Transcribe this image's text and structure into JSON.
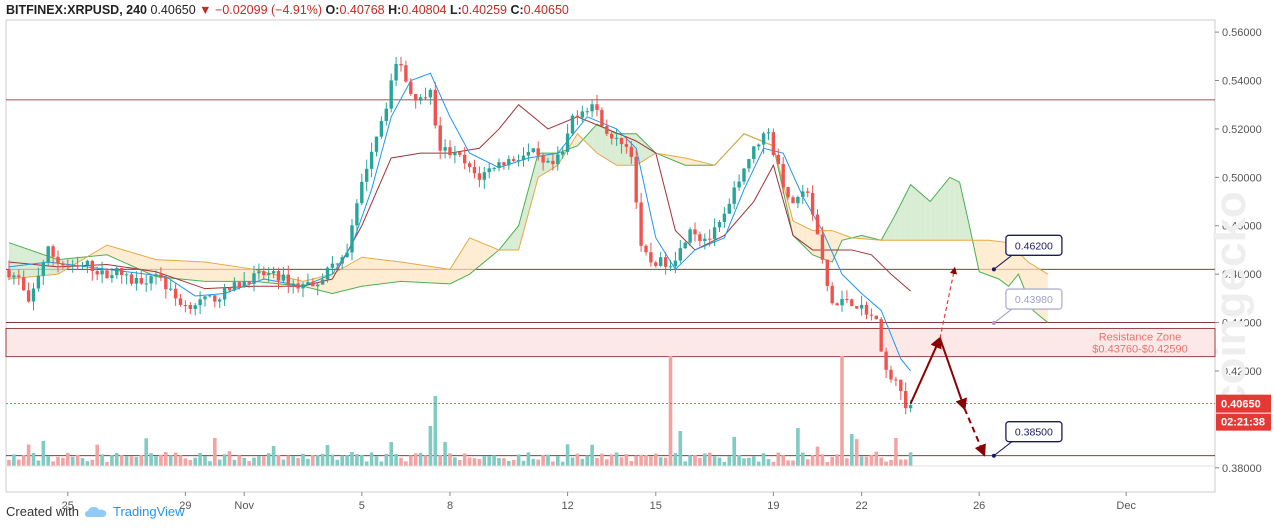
{
  "header": {
    "symbol": "BITFINEX:XRPUSD, 240",
    "last": "0.40650",
    "change": "−0.02099 (−4.91%)",
    "open_label": "O:",
    "open": "0.40768",
    "high_label": "H:",
    "high": "0.40804",
    "low_label": "L:",
    "low": "0.40259",
    "close_label": "C:",
    "close": "0.40650"
  },
  "footer": {
    "created_with": "Created with",
    "brand": "TradingView"
  },
  "colors": {
    "up": "#26a69a",
    "down": "#ef5350",
    "volume_up": "#80cbc4",
    "volume_down": "#f4a3a3",
    "hline": "#7b1c1c",
    "resistance_fill": "#fde8e8",
    "cloud_green": "#c9e6c3",
    "cloud_orange": "#fde5c0",
    "tenkan": "#2196f3",
    "kijun": "#a0333a",
    "span_a": "#4caf50",
    "span_b": "#e8a846",
    "badge_border": "#1a1a60",
    "arrow": "#8b0000",
    "price_tag": "#e53935"
  },
  "chart_data": {
    "type": "candlestick",
    "title": "BITFINEX:XRPUSD, 240",
    "ylim": [
      0.37,
      0.565
    ],
    "y_ticks": [
      "0.56000",
      "0.54000",
      "0.52000",
      "0.50000",
      "0.48000",
      "0.46000",
      "0.44000",
      "0.42000",
      "0.38000"
    ],
    "x_ticks": [
      {
        "label": "25",
        "idx": 12
      },
      {
        "label": "29",
        "idx": 36
      },
      {
        "label": "Nov",
        "idx": 48
      },
      {
        "label": "5",
        "idx": 72
      },
      {
        "label": "8",
        "idx": 90
      },
      {
        "label": "12",
        "idx": 114
      },
      {
        "label": "15",
        "idx": 132
      },
      {
        "label": "19",
        "idx": 156
      },
      {
        "label": "22",
        "idx": 174
      },
      {
        "label": "26",
        "idx": 198
      },
      {
        "label": "Dec",
        "idx": 228
      }
    ],
    "candle_count": 185,
    "anchors": [
      [
        0,
        0.462
      ],
      [
        3,
        0.458
      ],
      [
        5,
        0.447
      ],
      [
        7,
        0.46
      ],
      [
        9,
        0.47
      ],
      [
        11,
        0.465
      ],
      [
        14,
        0.462
      ],
      [
        17,
        0.464
      ],
      [
        20,
        0.46
      ],
      [
        23,
        0.461
      ],
      [
        26,
        0.457
      ],
      [
        29,
        0.458
      ],
      [
        31,
        0.461
      ],
      [
        33,
        0.455
      ],
      [
        35,
        0.45
      ],
      [
        37,
        0.447
      ],
      [
        41,
        0.449
      ],
      [
        44,
        0.451
      ],
      [
        47,
        0.455
      ],
      [
        50,
        0.458
      ],
      [
        53,
        0.46
      ],
      [
        56,
        0.459
      ],
      [
        60,
        0.455
      ],
      [
        64,
        0.457
      ],
      [
        67,
        0.464
      ],
      [
        70,
        0.47
      ],
      [
        72,
        0.488
      ],
      [
        74,
        0.505
      ],
      [
        76,
        0.518
      ],
      [
        78,
        0.53
      ],
      [
        79,
        0.54
      ],
      [
        80,
        0.545
      ],
      [
        81,
        0.548
      ],
      [
        82,
        0.54
      ],
      [
        83,
        0.535
      ],
      [
        85,
        0.532
      ],
      [
        87,
        0.538
      ],
      [
        88,
        0.52
      ],
      [
        89,
        0.512
      ],
      [
        91,
        0.51
      ],
      [
        93,
        0.508
      ],
      [
        95,
        0.503
      ],
      [
        97,
        0.5
      ],
      [
        100,
        0.505
      ],
      [
        103,
        0.507
      ],
      [
        106,
        0.509
      ],
      [
        108,
        0.51
      ],
      [
        110,
        0.505
      ],
      [
        112,
        0.505
      ],
      [
        114,
        0.51
      ],
      [
        116,
        0.525
      ],
      [
        118,
        0.528
      ],
      [
        120,
        0.53
      ],
      [
        122,
        0.523
      ],
      [
        124,
        0.515
      ],
      [
        126,
        0.515
      ],
      [
        128,
        0.51
      ],
      [
        129,
        0.49
      ],
      [
        130,
        0.47
      ],
      [
        132,
        0.465
      ],
      [
        134,
        0.465
      ],
      [
        136,
        0.465
      ],
      [
        138,
        0.47
      ],
      [
        140,
        0.48
      ],
      [
        142,
        0.475
      ],
      [
        144,
        0.475
      ],
      [
        146,
        0.48
      ],
      [
        148,
        0.488
      ],
      [
        150,
        0.5
      ],
      [
        152,
        0.508
      ],
      [
        154,
        0.515
      ],
      [
        156,
        0.52
      ],
      [
        157,
        0.51
      ],
      [
        158,
        0.505
      ],
      [
        160,
        0.49
      ],
      [
        162,
        0.49
      ],
      [
        164,
        0.495
      ],
      [
        165,
        0.485
      ],
      [
        166,
        0.475
      ],
      [
        167,
        0.465
      ],
      [
        168,
        0.455
      ],
      [
        169,
        0.448
      ],
      [
        170,
        0.447
      ],
      [
        172,
        0.45
      ],
      [
        174,
        0.447
      ],
      [
        176,
        0.445
      ],
      [
        178,
        0.44
      ],
      [
        179,
        0.43
      ],
      [
        180,
        0.42
      ],
      [
        181,
        0.415
      ],
      [
        182,
        0.418
      ],
      [
        183,
        0.41
      ],
      [
        184,
        0.4065
      ]
    ],
    "key_levels": [
      {
        "price": 0.532
      },
      {
        "price": 0.462,
        "label": "0.46200"
      },
      {
        "price": 0.44
      },
      {
        "price": 0.4376,
        "label": "Resistance Zone top"
      },
      {
        "price": 0.4259,
        "label": "Resistance Zone bottom"
      },
      {
        "price": 0.385,
        "label": "0.38500"
      }
    ],
    "resistance_zone": {
      "label": "Resistance Zone",
      "range": "$0.43760-$0.42590",
      "top": 0.4376,
      "bottom": 0.4259
    },
    "badges": [
      {
        "label": "0.46200",
        "price": 0.462,
        "idx": 201
      },
      {
        "label": "0.43980",
        "price": 0.4398,
        "idx": 201
      },
      {
        "label": "0.38500",
        "price": 0.385,
        "idx": 201
      }
    ],
    "current_price": {
      "label": "0.40650",
      "price": 0.4065,
      "countdown": "02:21:38"
    },
    "forecast_path": [
      [
        184,
        0.4065
      ],
      [
        190,
        0.4335
      ],
      [
        195,
        0.4045
      ],
      [
        199,
        0.3855
      ]
    ],
    "forecast_alt": [
      [
        190,
        0.4335
      ],
      [
        193,
        0.4625
      ]
    ],
    "cloud_span_a": [
      [
        0,
        0.473
      ],
      [
        10,
        0.466
      ],
      [
        20,
        0.468
      ],
      [
        30,
        0.459
      ],
      [
        40,
        0.457
      ],
      [
        50,
        0.457
      ],
      [
        60,
        0.455
      ],
      [
        66,
        0.452
      ],
      [
        72,
        0.455
      ],
      [
        80,
        0.457
      ],
      [
        90,
        0.456
      ],
      [
        94,
        0.46
      ],
      [
        100,
        0.47
      ],
      [
        104,
        0.48
      ],
      [
        108,
        0.51
      ],
      [
        112,
        0.51
      ],
      [
        116,
        0.513
      ],
      [
        120,
        0.522
      ],
      [
        124,
        0.518
      ],
      [
        128,
        0.518
      ],
      [
        132,
        0.51
      ],
      [
        138,
        0.505
      ],
      [
        144,
        0.505
      ],
      [
        150,
        0.518
      ],
      [
        156,
        0.513
      ],
      [
        160,
        0.476
      ],
      [
        164,
        0.468
      ],
      [
        168,
        0.465
      ],
      [
        170,
        0.474
      ],
      [
        174,
        0.476
      ],
      [
        178,
        0.474
      ],
      [
        181,
        0.485
      ],
      [
        184,
        0.497
      ],
      [
        188,
        0.49
      ],
      [
        192,
        0.5
      ],
      [
        194,
        0.498
      ],
      [
        196,
        0.48
      ],
      [
        198,
        0.461
      ],
      [
        202,
        0.458
      ],
      [
        204,
        0.455
      ],
      [
        206,
        0.46
      ],
      [
        209,
        0.445
      ],
      [
        212,
        0.44
      ]
    ],
    "cloud_span_b": [
      [
        0,
        0.458
      ],
      [
        10,
        0.46
      ],
      [
        20,
        0.472
      ],
      [
        30,
        0.466
      ],
      [
        40,
        0.465
      ],
      [
        50,
        0.462
      ],
      [
        60,
        0.457
      ],
      [
        66,
        0.46
      ],
      [
        72,
        0.467
      ],
      [
        80,
        0.465
      ],
      [
        90,
        0.462
      ],
      [
        94,
        0.475
      ],
      [
        100,
        0.47
      ],
      [
        104,
        0.47
      ],
      [
        108,
        0.5
      ],
      [
        112,
        0.505
      ],
      [
        116,
        0.518
      ],
      [
        120,
        0.51
      ],
      [
        124,
        0.505
      ],
      [
        128,
        0.505
      ],
      [
        132,
        0.51
      ],
      [
        138,
        0.508
      ],
      [
        144,
        0.505
      ],
      [
        150,
        0.518
      ],
      [
        156,
        0.513
      ],
      [
        160,
        0.482
      ],
      [
        164,
        0.478
      ],
      [
        168,
        0.478
      ],
      [
        172,
        0.475
      ],
      [
        178,
        0.474
      ],
      [
        184,
        0.474
      ],
      [
        190,
        0.474
      ],
      [
        196,
        0.474
      ],
      [
        200,
        0.474
      ],
      [
        204,
        0.473
      ],
      [
        208,
        0.465
      ],
      [
        212,
        0.46
      ]
    ],
    "tenkan": [
      [
        0,
        0.463
      ],
      [
        8,
        0.465
      ],
      [
        16,
        0.463
      ],
      [
        24,
        0.461
      ],
      [
        32,
        0.459
      ],
      [
        38,
        0.451
      ],
      [
        44,
        0.452
      ],
      [
        52,
        0.458
      ],
      [
        60,
        0.455
      ],
      [
        66,
        0.46
      ],
      [
        70,
        0.472
      ],
      [
        74,
        0.495
      ],
      [
        78,
        0.525
      ],
      [
        82,
        0.54
      ],
      [
        86,
        0.543
      ],
      [
        90,
        0.525
      ],
      [
        94,
        0.51
      ],
      [
        100,
        0.504
      ],
      [
        106,
        0.508
      ],
      [
        112,
        0.51
      ],
      [
        118,
        0.525
      ],
      [
        124,
        0.52
      ],
      [
        128,
        0.512
      ],
      [
        132,
        0.475
      ],
      [
        136,
        0.462
      ],
      [
        140,
        0.47
      ],
      [
        146,
        0.475
      ],
      [
        150,
        0.495
      ],
      [
        154,
        0.512
      ],
      [
        158,
        0.51
      ],
      [
        162,
        0.492
      ],
      [
        166,
        0.478
      ],
      [
        170,
        0.46
      ],
      [
        174,
        0.452
      ],
      [
        178,
        0.445
      ],
      [
        182,
        0.425
      ],
      [
        184,
        0.42
      ]
    ],
    "kijun": [
      [
        0,
        0.465
      ],
      [
        10,
        0.463
      ],
      [
        20,
        0.464
      ],
      [
        30,
        0.461
      ],
      [
        40,
        0.454
      ],
      [
        50,
        0.455
      ],
      [
        60,
        0.455
      ],
      [
        66,
        0.458
      ],
      [
        72,
        0.48
      ],
      [
        78,
        0.508
      ],
      [
        84,
        0.51
      ],
      [
        90,
        0.51
      ],
      [
        96,
        0.512
      ],
      [
        100,
        0.52
      ],
      [
        104,
        0.53
      ],
      [
        110,
        0.52
      ],
      [
        116,
        0.525
      ],
      [
        122,
        0.52
      ],
      [
        128,
        0.515
      ],
      [
        132,
        0.51
      ],
      [
        136,
        0.478
      ],
      [
        140,
        0.47
      ],
      [
        146,
        0.476
      ],
      [
        152,
        0.49
      ],
      [
        156,
        0.505
      ],
      [
        160,
        0.476
      ],
      [
        164,
        0.47
      ],
      [
        168,
        0.47
      ],
      [
        172,
        0.47
      ],
      [
        176,
        0.468
      ],
      [
        180,
        0.46
      ],
      [
        184,
        0.453
      ]
    ]
  }
}
